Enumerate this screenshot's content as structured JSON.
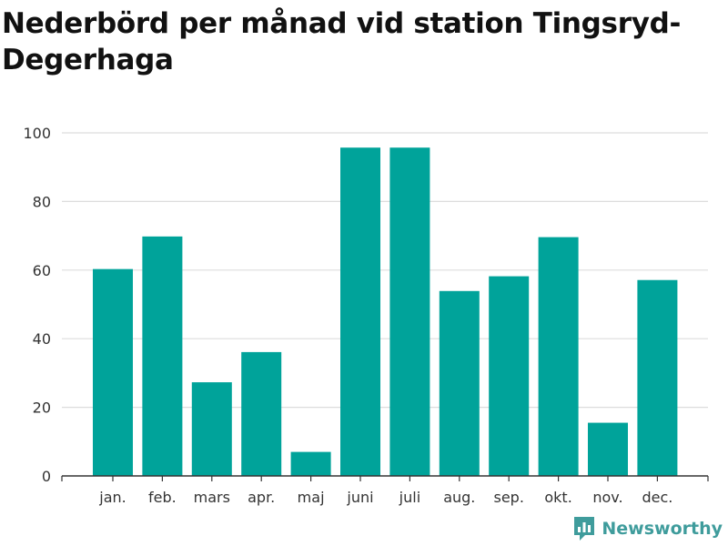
{
  "title": "Nederbörd per månad vid station Tingsryd-Degerhaga",
  "brand": {
    "name": "Newsworthy",
    "icon": "newsworthy-logo-icon",
    "color": "#3f9c9c"
  },
  "chart_data": {
    "type": "bar",
    "title": "Nederbörd per månad vid station Tingsryd-Degerhaga",
    "xlabel": "",
    "ylabel": "",
    "categories": [
      "jan.",
      "feb.",
      "mars",
      "apr.",
      "maj",
      "juni",
      "juli",
      "aug.",
      "sep.",
      "okt.",
      "nov.",
      "dec."
    ],
    "values": [
      60.3,
      69.8,
      27.3,
      36.1,
      7.0,
      95.7,
      95.7,
      53.9,
      58.2,
      69.6,
      15.5,
      57.1
    ],
    "ylim": [
      0,
      100
    ],
    "yticks": [
      0,
      20,
      40,
      60,
      80,
      100
    ],
    "grid": true,
    "bar_color": "#00a39a",
    "grid_color": "#dddddd"
  }
}
